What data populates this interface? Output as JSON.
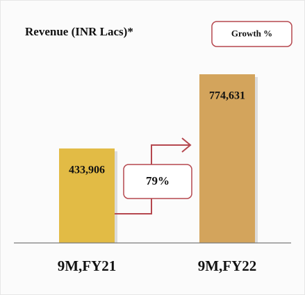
{
  "chart_data": {
    "type": "bar",
    "title": "Revenue (INR Lacs)*",
    "legend_label": "Growth %",
    "annotation": "79%",
    "categories": [
      "9M,FY21",
      "9M,FY22"
    ],
    "values": [
      433906,
      774631
    ],
    "value_labels": [
      "433,906",
      "774,631"
    ],
    "colors": [
      "#e2bb45",
      "#d3a45c"
    ]
  }
}
